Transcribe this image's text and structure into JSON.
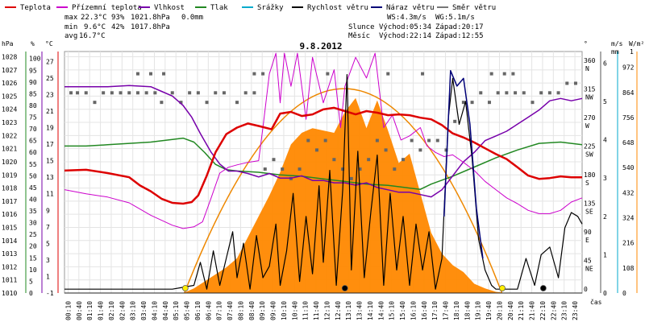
{
  "chart_data": {
    "type": "line",
    "title": "9.8.2012",
    "legend": [
      {
        "label": "Teplota",
        "color": "#dd0000"
      },
      {
        "label": "Přízemní teplota",
        "color": "#cc00cc"
      },
      {
        "label": "Vlhkost",
        "color": "#7700aa"
      },
      {
        "label": "Tlak",
        "color": "#228822"
      },
      {
        "label": "Srážky",
        "color": "#00aacc"
      },
      {
        "label": "Rychlost větru",
        "color": "#000000"
      },
      {
        "label": "Náraz větru",
        "color": "#000077"
      },
      {
        "label": "Směr větru",
        "color": "#777777"
      }
    ],
    "stats": {
      "max": {
        "label": "max",
        "temp": "22.3°C",
        "hum": "93%",
        "press": "1021.8hPa",
        "rain": "0.0mm"
      },
      "min": {
        "label": "min",
        "temp": "9.6°C",
        "hum": "42%",
        "press": "1017.8hPa"
      },
      "avg": {
        "label": "avg",
        "temp": "16.7°C"
      }
    },
    "info": {
      "ws": "WS:4.3m/s",
      "wg": "WG:5.1m/s",
      "sun_label": "Slunce",
      "sun_rise": "Východ:05:34",
      "sun_set": "Západ:20:17",
      "moon_label": "Měsíc",
      "moon_rise": "Východ:22:14",
      "moon_set": "Západ:12:55"
    },
    "axes": {
      "hpa_label": "hPa",
      "hpa_ticks": [
        "1028",
        "1027",
        "1026",
        "1025",
        "1024",
        "1023",
        "1022",
        "1021",
        "1020",
        "1019",
        "1018",
        "1017",
        "1016",
        "1015",
        "1014",
        "1013",
        "1012",
        "1011",
        "1010"
      ],
      "pct_label": "%",
      "pct_ticks": [
        "100",
        "95",
        "90",
        "85",
        "80",
        "75",
        "70",
        "65",
        "60",
        "55",
        "50",
        "45",
        "40",
        "35",
        "30",
        "25",
        "20",
        "15",
        "10",
        "5",
        "0"
      ],
      "degc_label": "°C",
      "degc_ticks": [
        "27",
        "25",
        "23",
        "21",
        "19",
        "17",
        "15",
        "13",
        "11",
        "9",
        "7",
        "5",
        "3",
        "1",
        "-1"
      ],
      "deg_label": "°",
      "dir_ticks": [
        {
          "v": "360",
          "d": "N"
        },
        {
          "v": "315",
          "d": "NW"
        },
        {
          "v": "270",
          "d": "W"
        },
        {
          "v": "225",
          "d": "SW"
        },
        {
          "v": "180",
          "d": "S"
        },
        {
          "v": "135",
          "d": "SE"
        },
        {
          "v": "90",
          "d": "E"
        },
        {
          "v": "45",
          "d": "NE"
        },
        {
          "v": "0",
          "d": ""
        }
      ],
      "ms_label": "m/s",
      "ms_ticks": [
        "6",
        "5",
        "4",
        "3",
        "2",
        "1",
        "0"
      ],
      "mm_label": "mm",
      "mm_top": "1",
      "mm_ticks": [
        "972",
        "864",
        "756",
        "648",
        "540",
        "432",
        "324",
        "216",
        "108",
        "0"
      ],
      "wm_label": "W/m²",
      "time_label": "čas",
      "time_ticks": [
        "00:10",
        "00:40",
        "01:10",
        "01:40",
        "02:10",
        "02:40",
        "03:10",
        "03:40",
        "04:10",
        "04:40",
        "05:10",
        "05:40",
        "06:10",
        "06:40",
        "07:10",
        "07:40",
        "08:10",
        "08:40",
        "09:10",
        "09:40",
        "10:10",
        "10:40",
        "11:10",
        "11:40",
        "12:10",
        "12:40",
        "13:10",
        "13:40",
        "14:10",
        "14:40",
        "15:10",
        "15:40",
        "16:10",
        "16:40",
        "17:10",
        "17:40",
        "18:10",
        "18:40",
        "19:10",
        "19:40",
        "20:10",
        "20:40",
        "21:10",
        "21:40",
        "22:10",
        "22:40",
        "23:10",
        "23:40"
      ]
    },
    "x_range_hours": [
      0,
      24
    ],
    "temperature_c": [
      [
        0,
        13.8
      ],
      [
        1,
        13.9
      ],
      [
        2,
        13.5
      ],
      [
        3,
        13.0
      ],
      [
        3.5,
        12.0
      ],
      [
        4,
        11.3
      ],
      [
        4.5,
        10.4
      ],
      [
        5,
        9.9
      ],
      [
        5.5,
        9.8
      ],
      [
        5.9,
        10.0
      ],
      [
        6.2,
        10.8
      ],
      [
        6.6,
        13.2
      ],
      [
        7,
        16.0
      ],
      [
        7.5,
        18.2
      ],
      [
        8,
        19.0
      ],
      [
        8.5,
        19.5
      ],
      [
        9,
        19.2
      ],
      [
        9.6,
        18.8
      ],
      [
        10,
        20.7
      ],
      [
        10.5,
        20.9
      ],
      [
        11,
        20.4
      ],
      [
        11.5,
        20.6
      ],
      [
        12,
        21.2
      ],
      [
        12.5,
        21.4
      ],
      [
        13,
        21.0
      ],
      [
        13.5,
        20.6
      ],
      [
        14,
        21.0
      ],
      [
        14.5,
        20.8
      ],
      [
        15,
        20.5
      ],
      [
        15.5,
        20.6
      ],
      [
        16,
        20.5
      ],
      [
        16.5,
        20.2
      ],
      [
        17,
        20.0
      ],
      [
        17.5,
        19.3
      ],
      [
        18,
        18.3
      ],
      [
        18.5,
        17.8
      ],
      [
        19,
        17.2
      ],
      [
        19.5,
        16.5
      ],
      [
        20,
        15.8
      ],
      [
        20.5,
        15.2
      ],
      [
        21,
        14.2
      ],
      [
        21.5,
        13.2
      ],
      [
        22,
        12.8
      ],
      [
        22.5,
        12.9
      ],
      [
        23,
        13.1
      ],
      [
        23.5,
        13.0
      ],
      [
        24,
        13.0
      ]
    ],
    "ground_temp_c": [
      [
        0,
        11.5
      ],
      [
        1,
        11.0
      ],
      [
        2,
        10.6
      ],
      [
        3,
        9.9
      ],
      [
        4,
        8.4
      ],
      [
        5,
        7.2
      ],
      [
        5.5,
        6.8
      ],
      [
        6,
        7.0
      ],
      [
        6.4,
        7.6
      ],
      [
        6.8,
        10.5
      ],
      [
        7.2,
        13.5
      ],
      [
        7.6,
        14.2
      ],
      [
        8,
        14.5
      ],
      [
        8.5,
        14.8
      ],
      [
        9,
        15.0
      ],
      [
        9.2,
        19.0
      ],
      [
        9.5,
        25.5
      ],
      [
        9.8,
        28.0
      ],
      [
        10,
        22.0
      ],
      [
        10.2,
        28.0
      ],
      [
        10.5,
        24.0
      ],
      [
        10.8,
        28.0
      ],
      [
        11.2,
        20.0
      ],
      [
        11.5,
        27.5
      ],
      [
        12,
        22.0
      ],
      [
        12.5,
        26.0
      ],
      [
        12.8,
        19.0
      ],
      [
        13,
        24.0
      ],
      [
        13.5,
        27.5
      ],
      [
        14,
        25.0
      ],
      [
        14.4,
        28.0
      ],
      [
        14.8,
        19.0
      ],
      [
        15.2,
        20.5
      ],
      [
        15.6,
        17.5
      ],
      [
        16,
        18.0
      ],
      [
        16.5,
        19.0
      ],
      [
        16.8,
        16.8
      ],
      [
        17.2,
        16.0
      ],
      [
        17.6,
        15.5
      ],
      [
        18,
        15.7
      ],
      [
        18.5,
        14.8
      ],
      [
        19,
        13.8
      ],
      [
        19.5,
        12.5
      ],
      [
        20,
        11.5
      ],
      [
        20.5,
        10.5
      ],
      [
        21,
        9.8
      ],
      [
        21.5,
        9.0
      ],
      [
        22,
        8.6
      ],
      [
        22.5,
        8.6
      ],
      [
        23,
        9.0
      ],
      [
        23.5,
        10.0
      ],
      [
        24,
        10.5
      ]
    ],
    "humidity_pct": [
      [
        0,
        88
      ],
      [
        1,
        88
      ],
      [
        2,
        88
      ],
      [
        3,
        88.5
      ],
      [
        4,
        88
      ],
      [
        4.5,
        86
      ],
      [
        5,
        84
      ],
      [
        5.5,
        80
      ],
      [
        5.9,
        75
      ],
      [
        6.3,
        68
      ],
      [
        6.8,
        60
      ],
      [
        7.2,
        55
      ],
      [
        7.6,
        52
      ],
      [
        8,
        52
      ],
      [
        8.5,
        51
      ],
      [
        9,
        49.5
      ],
      [
        9.5,
        51
      ],
      [
        10,
        49
      ],
      [
        10.5,
        49
      ],
      [
        11,
        50
      ],
      [
        11.5,
        48
      ],
      [
        12,
        48
      ],
      [
        12.5,
        47
      ],
      [
        13,
        47
      ],
      [
        13.5,
        46
      ],
      [
        14,
        47
      ],
      [
        14.5,
        45
      ],
      [
        15,
        44
      ],
      [
        15.5,
        43
      ],
      [
        16,
        43
      ],
      [
        16.5,
        42
      ],
      [
        17,
        41
      ],
      [
        17.5,
        44
      ],
      [
        18,
        50
      ],
      [
        18.5,
        56
      ],
      [
        19,
        60
      ],
      [
        19.5,
        65
      ],
      [
        20,
        67
      ],
      [
        20.5,
        69
      ],
      [
        21,
        72
      ],
      [
        21.5,
        75
      ],
      [
        22,
        78
      ],
      [
        22.5,
        82
      ],
      [
        23,
        83
      ],
      [
        23.5,
        82
      ],
      [
        24,
        83
      ]
    ],
    "pressure_hpa": [
      [
        0,
        1021.2
      ],
      [
        1,
        1021.2
      ],
      [
        2,
        1021.3
      ],
      [
        3,
        1021.4
      ],
      [
        4,
        1021.5
      ],
      [
        5,
        1021.7
      ],
      [
        5.5,
        1021.8
      ],
      [
        6,
        1021.5
      ],
      [
        6.5,
        1020.7
      ],
      [
        7,
        1019.8
      ],
      [
        7.5,
        1019.4
      ],
      [
        8,
        1019.3
      ],
      [
        9,
        1019.2
      ],
      [
        10,
        1019.0
      ],
      [
        11,
        1018.9
      ],
      [
        12,
        1018.7
      ],
      [
        13,
        1018.5
      ],
      [
        14,
        1018.3
      ],
      [
        15,
        1018.2
      ],
      [
        16,
        1018.0
      ],
      [
        16.5,
        1017.9
      ],
      [
        17,
        1018.3
      ],
      [
        18,
        1018.9
      ],
      [
        19,
        1019.6
      ],
      [
        20,
        1020.3
      ],
      [
        21,
        1020.9
      ],
      [
        22,
        1021.4
      ],
      [
        23,
        1021.5
      ],
      [
        24,
        1021.3
      ]
    ],
    "wind_speed_ms": [
      [
        0,
        0.1
      ],
      [
        1,
        0.1
      ],
      [
        2,
        0.1
      ],
      [
        3,
        0.1
      ],
      [
        4,
        0.1
      ],
      [
        5,
        0.1
      ],
      [
        5.5,
        0.15
      ],
      [
        6,
        0.2
      ],
      [
        6.3,
        0.8
      ],
      [
        6.6,
        0.1
      ],
      [
        6.9,
        1.1
      ],
      [
        7.2,
        0.2
      ],
      [
        7.5,
        0.9
      ],
      [
        7.8,
        1.6
      ],
      [
        8,
        0.4
      ],
      [
        8.3,
        1.3
      ],
      [
        8.6,
        0.1
      ],
      [
        8.9,
        1.5
      ],
      [
        9.2,
        0.4
      ],
      [
        9.5,
        0.7
      ],
      [
        9.8,
        1.8
      ],
      [
        10,
        0.2
      ],
      [
        10.3,
        1.1
      ],
      [
        10.6,
        2.6
      ],
      [
        10.9,
        0.3
      ],
      [
        11.2,
        2.0
      ],
      [
        11.5,
        0.5
      ],
      [
        11.8,
        2.8
      ],
      [
        12,
        0.8
      ],
      [
        12.3,
        3.2
      ],
      [
        12.6,
        0.2
      ],
      [
        12.9,
        2.7
      ],
      [
        13.1,
        5.7
      ],
      [
        13.3,
        0.6
      ],
      [
        13.6,
        3.7
      ],
      [
        13.9,
        0.4
      ],
      [
        14.2,
        2.1
      ],
      [
        14.5,
        3.6
      ],
      [
        14.8,
        0.2
      ],
      [
        15.1,
        2.6
      ],
      [
        15.4,
        0.6
      ],
      [
        15.7,
        2.0
      ],
      [
        16,
        0.2
      ],
      [
        16.3,
        1.8
      ],
      [
        16.6,
        0.6
      ],
      [
        16.9,
        1.6
      ],
      [
        17.2,
        0.1
      ],
      [
        17.5,
        0.9
      ],
      [
        17.8,
        4.6
      ],
      [
        18,
        5.6
      ],
      [
        18.3,
        4.4
      ],
      [
        18.6,
        5.0
      ],
      [
        18.9,
        3.5
      ],
      [
        19.2,
        1.4
      ],
      [
        19.5,
        0.6
      ],
      [
        19.8,
        0.2
      ],
      [
        20,
        0.1
      ],
      [
        21,
        0.1
      ],
      [
        21.4,
        0.9
      ],
      [
        21.8,
        0.2
      ],
      [
        22.1,
        1.0
      ],
      [
        22.5,
        1.2
      ],
      [
        22.9,
        0.4
      ],
      [
        23.2,
        1.7
      ],
      [
        23.5,
        2.1
      ],
      [
        23.8,
        2.0
      ],
      [
        24,
        1.8
      ]
    ],
    "wind_gust_ms": [
      [
        17.6,
        2.0
      ],
      [
        17.9,
        5.8
      ],
      [
        18.2,
        5.4
      ],
      [
        18.5,
        5.6
      ],
      [
        18.8,
        4.4
      ],
      [
        19.1,
        2.2
      ],
      [
        19.4,
        0.9
      ]
    ],
    "solar_wm2": [
      [
        0,
        0
      ],
      [
        5.5,
        0
      ],
      [
        6,
        20
      ],
      [
        6.5,
        50
      ],
      [
        7,
        80
      ],
      [
        7.5,
        110
      ],
      [
        8,
        150
      ],
      [
        8.5,
        240
      ],
      [
        9,
        330
      ],
      [
        9.5,
        420
      ],
      [
        10,
        520
      ],
      [
        10.5,
        640
      ],
      [
        11,
        690
      ],
      [
        11.5,
        710
      ],
      [
        12,
        700
      ],
      [
        12.5,
        690
      ],
      [
        13,
        780
      ],
      [
        13.5,
        840
      ],
      [
        14,
        710
      ],
      [
        14.5,
        830
      ],
      [
        15,
        700
      ],
      [
        15.5,
        560
      ],
      [
        16,
        600
      ],
      [
        16.5,
        430
      ],
      [
        17,
        260
      ],
      [
        17.5,
        170
      ],
      [
        18,
        120
      ],
      [
        18.5,
        90
      ],
      [
        19,
        40
      ],
      [
        19.5,
        20
      ],
      [
        20,
        5
      ],
      [
        20.5,
        0
      ],
      [
        24,
        0
      ]
    ],
    "sun_elev": [
      [
        5.56,
        0
      ],
      [
        13.0,
        1
      ],
      [
        20.28,
        0
      ]
    ],
    "wind_dir_deg": [
      [
        0.3,
        315
      ],
      [
        0.6,
        315
      ],
      [
        1,
        315
      ],
      [
        1.4,
        300
      ],
      [
        1.8,
        315
      ],
      [
        2.2,
        315
      ],
      [
        2.6,
        315
      ],
      [
        3,
        315
      ],
      [
        3.4,
        315
      ],
      [
        3.8,
        315
      ],
      [
        4.2,
        315
      ],
      [
        4.5,
        300
      ],
      [
        5,
        315
      ],
      [
        5.4,
        300
      ],
      [
        5.8,
        315
      ],
      [
        6.2,
        315
      ],
      [
        6.6,
        300
      ],
      [
        7,
        315
      ],
      [
        7.4,
        315
      ],
      [
        8,
        300
      ],
      [
        8.4,
        315
      ],
      [
        8.8,
        315
      ],
      [
        9.3,
        195
      ],
      [
        9.7,
        210
      ],
      [
        10.1,
        195
      ],
      [
        10.5,
        180
      ],
      [
        10.9,
        195
      ],
      [
        11.3,
        240
      ],
      [
        11.7,
        225
      ],
      [
        12.1,
        240
      ],
      [
        12.5,
        210
      ],
      [
        12.9,
        195
      ],
      [
        13.3,
        180
      ],
      [
        13.7,
        195
      ],
      [
        14.1,
        210
      ],
      [
        14.5,
        240
      ],
      [
        14.9,
        225
      ],
      [
        15.3,
        195
      ],
      [
        15.7,
        210
      ],
      [
        16.1,
        240
      ],
      [
        16.5,
        225
      ],
      [
        16.9,
        240
      ],
      [
        17.3,
        240
      ],
      [
        17.7,
        225
      ],
      [
        18.1,
        270
      ],
      [
        18.5,
        300
      ],
      [
        18.9,
        300
      ],
      [
        19.3,
        315
      ],
      [
        19.7,
        300
      ],
      [
        20.1,
        315
      ],
      [
        20.5,
        315
      ],
      [
        20.9,
        315
      ],
      [
        21.3,
        315
      ],
      [
        21.7,
        300
      ],
      [
        22.1,
        315
      ],
      [
        22.5,
        315
      ],
      [
        22.9,
        315
      ],
      [
        23.3,
        330
      ],
      [
        23.7,
        330
      ]
    ],
    "wind_dir_top_deg": [
      [
        3.4,
        345
      ],
      [
        4.0,
        345
      ],
      [
        4.6,
        345
      ],
      [
        8.8,
        345
      ],
      [
        9.2,
        345
      ],
      [
        12.2,
        345
      ],
      [
        15.0,
        345
      ],
      [
        16.6,
        345
      ],
      [
        19.8,
        345
      ],
      [
        20.4,
        345
      ],
      [
        20.8,
        345
      ]
    ],
    "markers": [
      {
        "time": 5.6,
        "kind": "sunrise",
        "color": "#ffee00"
      },
      {
        "time": 13.0,
        "kind": "moon",
        "color": "#000000"
      },
      {
        "time": 20.3,
        "kind": "sunset",
        "color": "#ffee00"
      },
      {
        "time": 22.2,
        "kind": "moon",
        "color": "#000000"
      }
    ]
  }
}
